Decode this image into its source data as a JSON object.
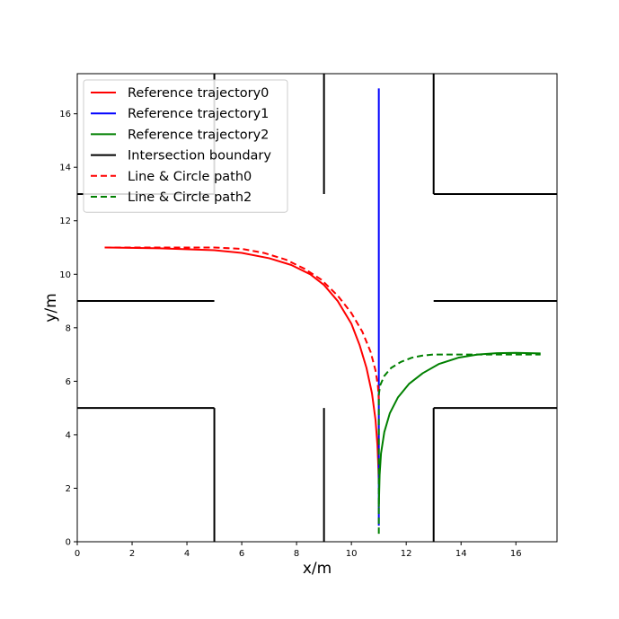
{
  "chart_data": {
    "type": "line",
    "title": "",
    "xlabel": "x/m",
    "ylabel": "y/m",
    "xlim": [
      0,
      17.5
    ],
    "ylim": [
      0,
      17.5
    ],
    "xticks": [
      "0",
      "2",
      "4",
      "6",
      "8",
      "10",
      "12",
      "14",
      "16"
    ],
    "yticks": [
      "0",
      "2",
      "4",
      "6",
      "8",
      "10",
      "12",
      "14",
      "16"
    ],
    "grid": false,
    "legend_position": "top-left",
    "series": [
      {
        "name": "Reference trajectory0",
        "color": "#ff0000",
        "style": "solid",
        "x": [
          1.0,
          3.0,
          5.0,
          6.0,
          7.0,
          7.8,
          8.5,
          9.0,
          9.5,
          10.0,
          10.3,
          10.55,
          10.75,
          10.88,
          10.95,
          10.98,
          11.0
        ],
        "y": [
          11.0,
          10.97,
          10.9,
          10.8,
          10.6,
          10.35,
          10.0,
          9.6,
          9.0,
          8.15,
          7.35,
          6.5,
          5.55,
          4.55,
          3.6,
          2.85,
          2.2
        ]
      },
      {
        "name": "Reference trajectory1",
        "color": "#0000ff",
        "style": "solid",
        "x": [
          11.0,
          11.0,
          11.0
        ],
        "y": [
          0.6,
          10.0,
          16.95
        ]
      },
      {
        "name": "Reference trajectory2",
        "color": "#008000",
        "style": "solid",
        "x": [
          11.0,
          11.03,
          11.08,
          11.2,
          11.4,
          11.7,
          12.1,
          12.6,
          13.2,
          13.9,
          14.6,
          15.3,
          16.0,
          16.9
        ],
        "y": [
          1.3,
          2.5,
          3.3,
          4.1,
          4.8,
          5.4,
          5.9,
          6.3,
          6.65,
          6.88,
          7.0,
          7.05,
          7.06,
          7.04
        ]
      },
      {
        "name": "Intersection boundary",
        "color": "#000000",
        "style": "solid",
        "segments": [
          [
            [
              5,
              0
            ],
            [
              5,
              5
            ]
          ],
          [
            [
              0,
              5
            ],
            [
              5,
              5
            ]
          ],
          [
            [
              13,
              0
            ],
            [
              13,
              5
            ]
          ],
          [
            [
              13,
              5
            ],
            [
              17.5,
              5
            ]
          ],
          [
            [
              5,
              13
            ],
            [
              5,
              17.5
            ]
          ],
          [
            [
              0,
              13
            ],
            [
              5,
              13
            ]
          ],
          [
            [
              13,
              13
            ],
            [
              13,
              17.5
            ]
          ],
          [
            [
              13,
              13
            ],
            [
              17.5,
              13
            ]
          ],
          [
            [
              0,
              9
            ],
            [
              5,
              9
            ]
          ],
          [
            [
              13,
              9
            ],
            [
              17.5,
              9
            ]
          ],
          [
            [
              9,
              0
            ],
            [
              9,
              5
            ]
          ],
          [
            [
              9,
              13
            ],
            [
              9,
              17.5
            ]
          ]
        ]
      },
      {
        "name": "Line & Circle path0",
        "color": "#ff0000",
        "style": "dashed",
        "x": [
          1.0,
          3.0,
          5.0,
          6.0,
          6.8,
          7.6,
          8.3,
          8.9,
          9.5,
          10.0,
          10.4,
          10.7,
          10.88,
          10.97,
          11.0
        ],
        "y": [
          11.0,
          11.0,
          11.0,
          10.95,
          10.8,
          10.55,
          10.2,
          9.8,
          9.2,
          8.55,
          7.85,
          7.1,
          6.4,
          5.8,
          5.3
        ]
      },
      {
        "name": "Line & Circle path2",
        "color": "#008000",
        "style": "dashed",
        "x": [
          11.0,
          11.0,
          11.05,
          11.2,
          11.45,
          11.8,
          12.2,
          12.6,
          13.0,
          13.5,
          14.0,
          15.0,
          16.0,
          16.9
        ],
        "y": [
          0.3,
          5.5,
          5.85,
          6.2,
          6.5,
          6.72,
          6.88,
          6.96,
          7.0,
          7.0,
          7.0,
          7.0,
          7.0,
          7.0
        ]
      }
    ]
  }
}
